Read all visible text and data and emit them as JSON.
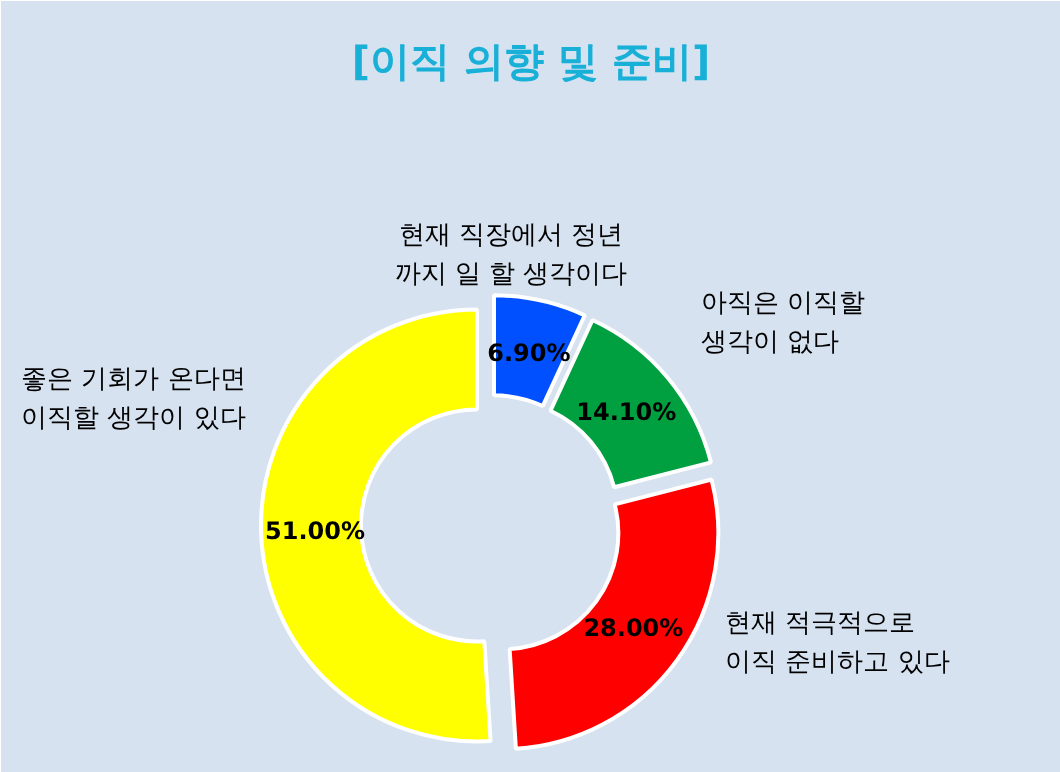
{
  "chart_data": {
    "type": "donut",
    "title": "[이직 의향 및 준비]",
    "categories": [
      "현재 직장에서 정년\n까지 일 할 생각이다",
      "아직은 이직할\n생각이 없다",
      "현재 적극적으로\n이직 준비하고 있다",
      "좋은 기회가 온다면\n이직할 생각이 있다"
    ],
    "values": [
      6.9,
      14.1,
      28.0,
      51.0
    ],
    "colors": [
      "#0050ff",
      "#00a040",
      "#ff0000",
      "#ffff00"
    ],
    "value_labels": [
      "6.90%",
      "14.10%",
      "28.00%",
      "51.00%"
    ]
  }
}
